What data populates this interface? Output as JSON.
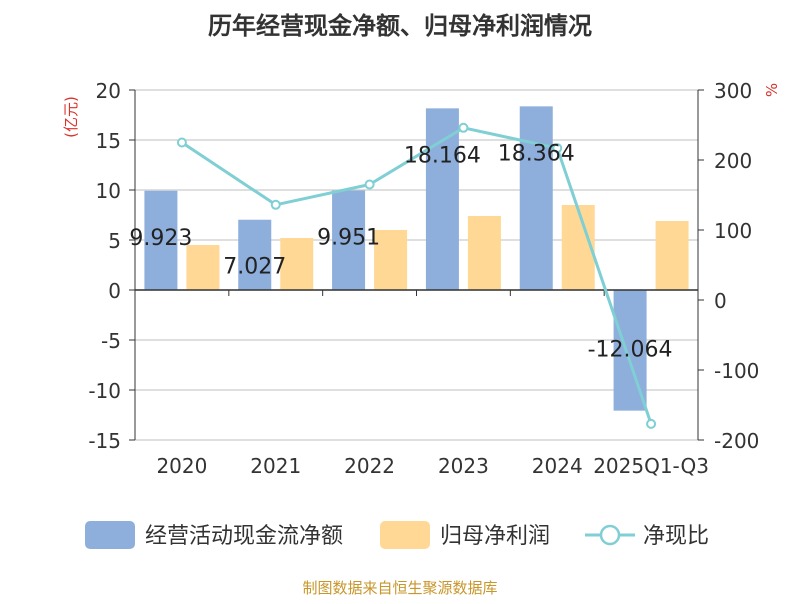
{
  "chart_data": {
    "type": "bar",
    "title": "历年经营现金净额、归母净利润情况",
    "categories": [
      "2020",
      "2021",
      "2022",
      "2023",
      "2024",
      "2025Q1-Q3"
    ],
    "series": [
      {
        "name": "经营活动现金流净额",
        "type": "bar",
        "axis": "left",
        "color": "#8eaedb",
        "values": [
          9.923,
          7.027,
          9.951,
          18.164,
          18.364,
          -12.064
        ],
        "labels": [
          "9.923",
          "7.027",
          "9.951",
          "18.164",
          "18.364",
          "-12.064"
        ]
      },
      {
        "name": "归母净利润",
        "type": "bar",
        "axis": "left",
        "color": "#ffd896",
        "values": [
          4.5,
          5.2,
          6.0,
          7.4,
          8.5,
          6.9
        ]
      },
      {
        "name": "净现比",
        "type": "line",
        "axis": "right",
        "color": "#7fcfd4",
        "values": [
          225,
          136,
          165,
          246,
          217,
          -177
        ]
      }
    ],
    "yleft": {
      "label": "(亿元)",
      "min": -15,
      "max": 20,
      "ticks": [
        "20",
        "15",
        "10",
        "5",
        "0",
        "-5",
        "-10",
        "-15"
      ]
    },
    "yright": {
      "label": "%",
      "min": -200,
      "max": 300,
      "ticks": [
        "300",
        "200",
        "100",
        "0",
        "-100",
        "-200"
      ]
    },
    "legend_position": "bottom",
    "source": "制图数据来自恒生聚源数据库"
  }
}
